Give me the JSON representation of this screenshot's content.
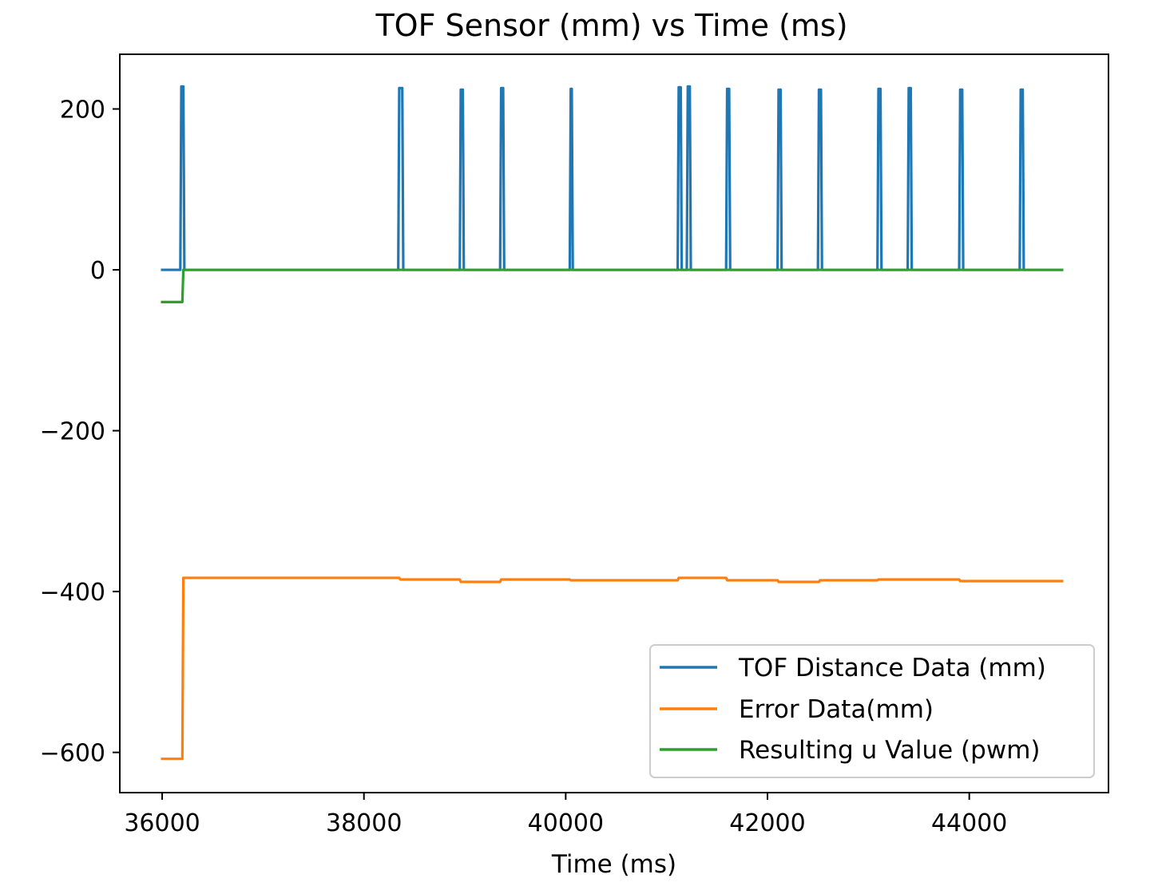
{
  "chart_data": {
    "type": "line",
    "title": "TOF Sensor (mm) vs Time (ms)",
    "xlabel": "Time (ms)",
    "ylabel": "",
    "xlim": [
      35580,
      45380
    ],
    "ylim": [
      -650,
      268
    ],
    "xticks": [
      36000,
      38000,
      40000,
      42000,
      44000
    ],
    "xtick_labels": [
      "36000",
      "38000",
      "40000",
      "42000",
      "44000"
    ],
    "yticks": [
      200,
      0,
      -200,
      -400,
      -600
    ],
    "ytick_labels": [
      "200",
      "0",
      "−200",
      "−400",
      "−600"
    ],
    "grid": false,
    "legend_position": "lower right",
    "series": [
      {
        "name": "TOF Distance Data (mm)",
        "color": "#1f77b4",
        "points": [
          [
            36000,
            0
          ],
          [
            36180,
            0
          ],
          [
            36190,
            228
          ],
          [
            36210,
            228
          ],
          [
            36220,
            0
          ],
          [
            38340,
            0
          ],
          [
            38350,
            226
          ],
          [
            38380,
            226
          ],
          [
            38390,
            0
          ],
          [
            38950,
            0
          ],
          [
            38960,
            224
          ],
          [
            38980,
            224
          ],
          [
            38990,
            0
          ],
          [
            39350,
            0
          ],
          [
            39360,
            226
          ],
          [
            39380,
            226
          ],
          [
            39390,
            0
          ],
          [
            40040,
            0
          ],
          [
            40050,
            225
          ],
          [
            40060,
            225
          ],
          [
            40070,
            0
          ],
          [
            41110,
            0
          ],
          [
            41120,
            227
          ],
          [
            41140,
            227
          ],
          [
            41150,
            0
          ],
          [
            41200,
            0
          ],
          [
            41210,
            228
          ],
          [
            41230,
            228
          ],
          [
            41240,
            0
          ],
          [
            41590,
            0
          ],
          [
            41600,
            225
          ],
          [
            41620,
            225
          ],
          [
            41630,
            0
          ],
          [
            42100,
            0
          ],
          [
            42110,
            224
          ],
          [
            42130,
            224
          ],
          [
            42140,
            0
          ],
          [
            42500,
            0
          ],
          [
            42510,
            224
          ],
          [
            42530,
            224
          ],
          [
            42540,
            0
          ],
          [
            43090,
            0
          ],
          [
            43100,
            225
          ],
          [
            43120,
            225
          ],
          [
            43130,
            0
          ],
          [
            43390,
            0
          ],
          [
            43400,
            226
          ],
          [
            43420,
            226
          ],
          [
            43430,
            0
          ],
          [
            43900,
            0
          ],
          [
            43910,
            224
          ],
          [
            43930,
            224
          ],
          [
            43940,
            0
          ],
          [
            44500,
            0
          ],
          [
            44510,
            224
          ],
          [
            44530,
            224
          ],
          [
            44540,
            0
          ],
          [
            44920,
            0
          ]
        ]
      },
      {
        "name": "Error Data(mm)",
        "color": "#ff7f0e",
        "points": [
          [
            36000,
            -608
          ],
          [
            36200,
            -608
          ],
          [
            36210,
            -383
          ],
          [
            38350,
            -383
          ],
          [
            38360,
            -385
          ],
          [
            38950,
            -385
          ],
          [
            38960,
            -388
          ],
          [
            39350,
            -388
          ],
          [
            39360,
            -385
          ],
          [
            40040,
            -385
          ],
          [
            40050,
            -386
          ],
          [
            41110,
            -386
          ],
          [
            41120,
            -383
          ],
          [
            41590,
            -383
          ],
          [
            41600,
            -386
          ],
          [
            42100,
            -386
          ],
          [
            42110,
            -388
          ],
          [
            42510,
            -388
          ],
          [
            42520,
            -386
          ],
          [
            43090,
            -386
          ],
          [
            43100,
            -385
          ],
          [
            43900,
            -385
          ],
          [
            43910,
            -387
          ],
          [
            44920,
            -387
          ]
        ]
      },
      {
        "name": "Resulting u Value (pwm)",
        "color": "#2ca02c",
        "points": [
          [
            36000,
            -40
          ],
          [
            36200,
            -40
          ],
          [
            36210,
            0
          ],
          [
            44920,
            0
          ]
        ]
      }
    ]
  }
}
